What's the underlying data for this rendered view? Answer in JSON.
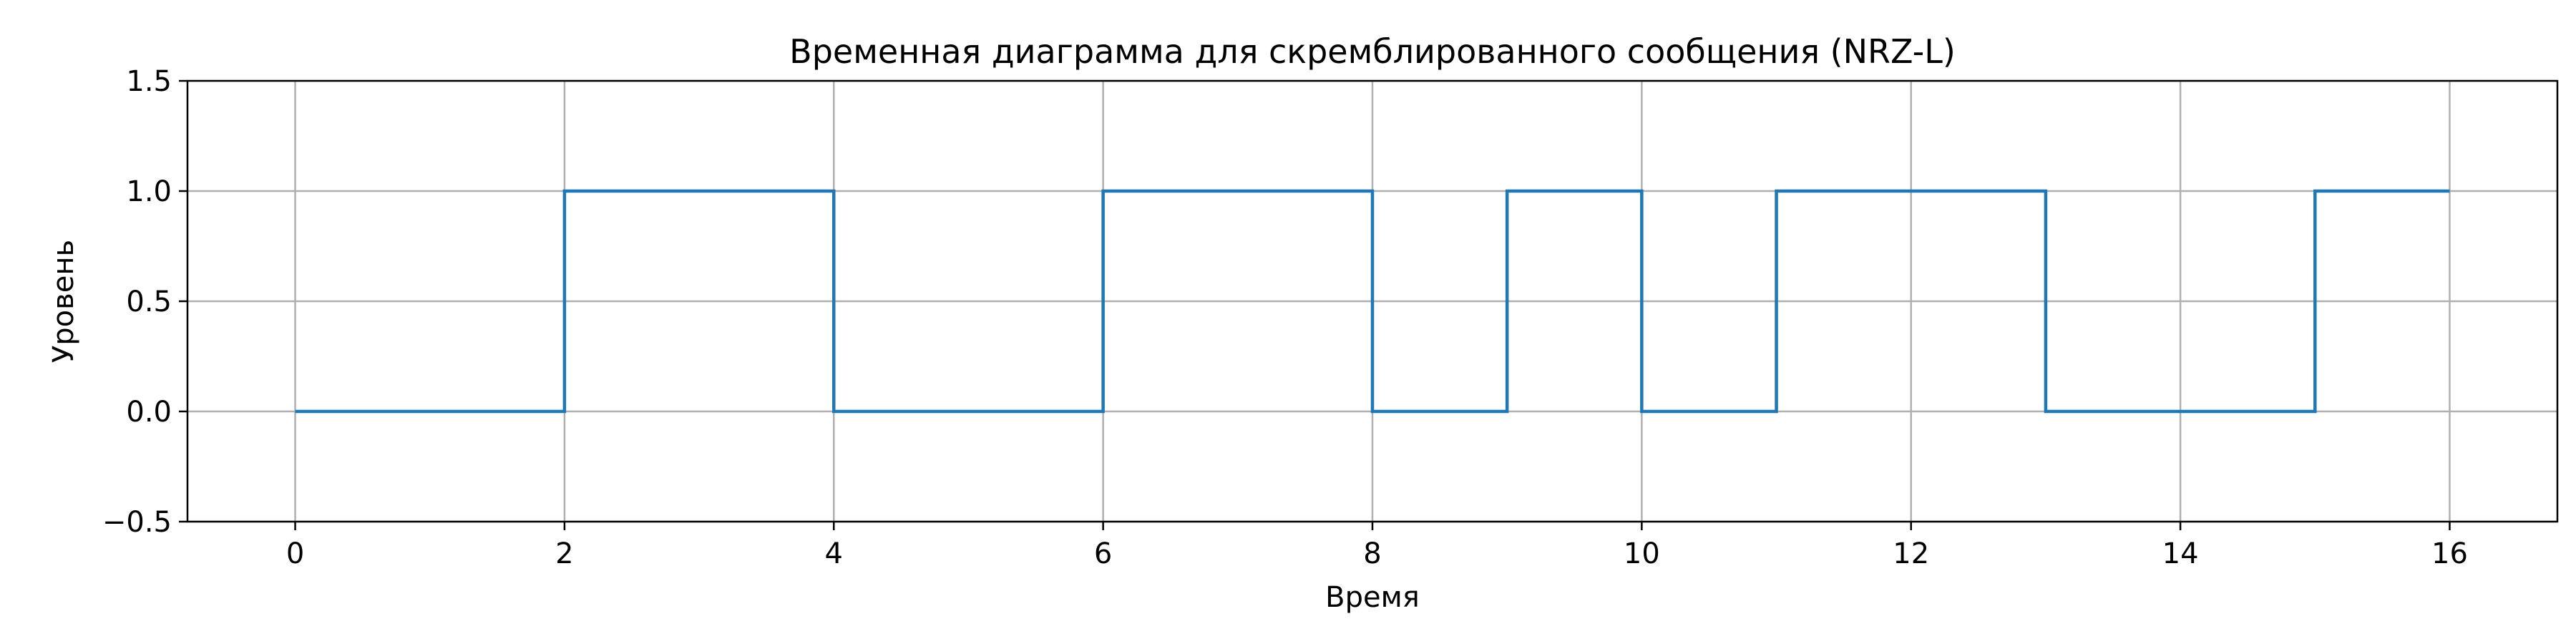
{
  "chart_data": {
    "type": "line",
    "step": "post",
    "title": "Временная диаграмма для скремблированного сообщения (NRZ-L)",
    "xlabel": "Время",
    "ylabel": "Уровень",
    "xlim": [
      -0.8,
      16.8
    ],
    "ylim": [
      -0.5,
      1.5
    ],
    "xticks": [
      0,
      2,
      4,
      6,
      8,
      10,
      12,
      14,
      16
    ],
    "yticks": [
      -0.5,
      0.0,
      0.5,
      1.0,
      1.5
    ],
    "xtick_labels": [
      "0",
      "2",
      "4",
      "6",
      "8",
      "10",
      "12",
      "14",
      "16"
    ],
    "ytick_labels": [
      "−0.5",
      "0.0",
      "0.5",
      "1.0",
      "1.5"
    ],
    "grid": true,
    "series": [
      {
        "color": "#1f77b4",
        "x": [
          0,
          2,
          4,
          6,
          8,
          9,
          10,
          11,
          13,
          15,
          16
        ],
        "y": [
          0,
          1,
          0,
          1,
          0,
          1,
          0,
          1,
          0,
          1,
          1
        ]
      }
    ]
  }
}
